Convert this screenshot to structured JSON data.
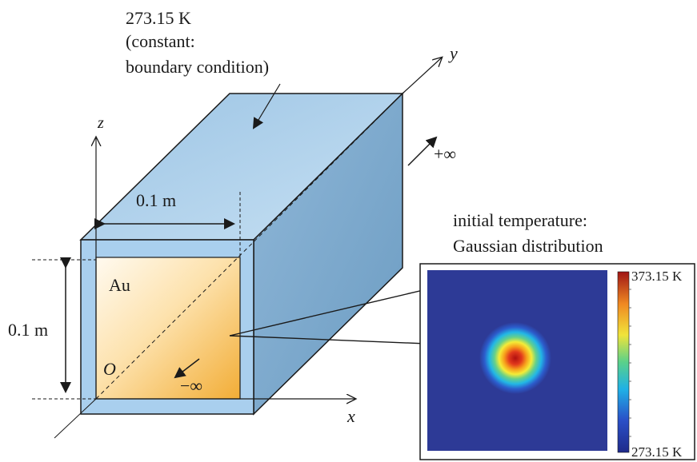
{
  "boundary": {
    "line1": "273.15 K",
    "line2": "(constant:",
    "line3": "boundary condition)"
  },
  "axes": {
    "x": "x",
    "y": "y",
    "z": "z",
    "origin": "O"
  },
  "infinity": {
    "plus": "+∞",
    "minus": "−∞"
  },
  "dims": {
    "width": "0.1 m",
    "height": "0.1 m"
  },
  "material": "Au",
  "initial": {
    "line1": "initial  temperature:",
    "line2": "Gaussian distribution"
  },
  "colorbar": {
    "max_label": "373.15 K",
    "min_label": "273.15 K"
  },
  "colors": {
    "box_top": "#b3d3ec",
    "box_side": "#7ea9cc",
    "box_front": "#a9cfee",
    "gold_light": "#fff6e3",
    "gold_dark": "#f2b03b",
    "field_background": "#2d3a96"
  }
}
